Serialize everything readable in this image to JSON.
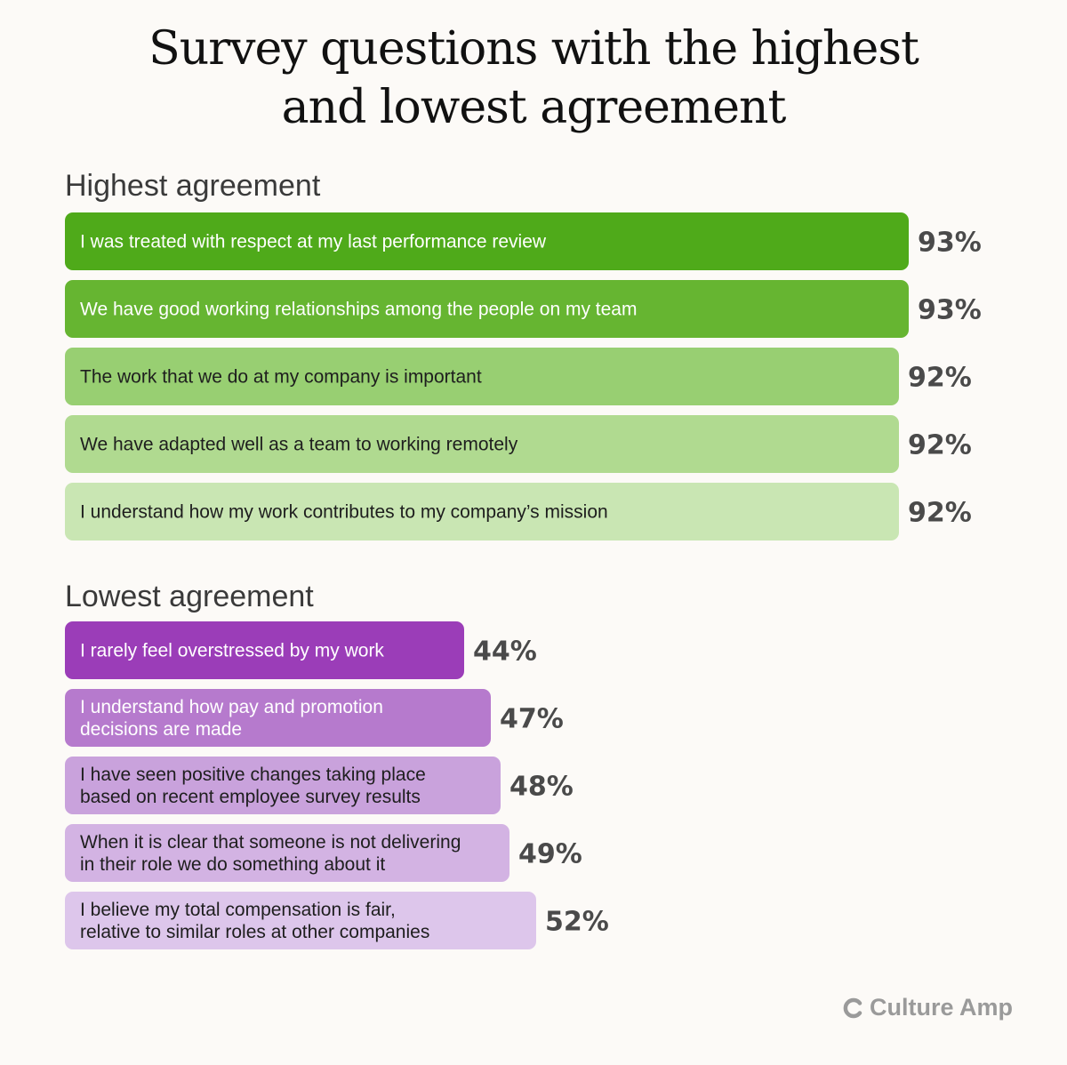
{
  "title_line1": "Survey questions with the highest",
  "title_line2": "and lowest agreement",
  "highest_heading": "Highest agreement",
  "lowest_heading": "Lowest agreement",
  "brand": "Culture Amp",
  "chart_data": [
    {
      "type": "bar",
      "orientation": "horizontal",
      "title": "Highest agreement",
      "unit": "%",
      "categories": [
        [
          "I was treated with respect at my last performance review"
        ],
        [
          "We have good working relationships among the people on my team"
        ],
        [
          "The work that we do at my company is important"
        ],
        [
          "We have adapted well as a team to working remotely"
        ],
        [
          "I understand how my work contributes to my company’s mission"
        ]
      ],
      "values": [
        93,
        93,
        92,
        92,
        92
      ],
      "value_labels": [
        "93%",
        "93%",
        "92%",
        "92%",
        "92%"
      ],
      "colors": [
        "#4faa1a",
        "#66b531",
        "#98cf72",
        "#b0da90",
        "#c9e6b3"
      ],
      "text_colors": [
        "#ffffff",
        "#ffffff",
        "#1e1e1e",
        "#1e1e1e",
        "#1e1e1e"
      ]
    },
    {
      "type": "bar",
      "orientation": "horizontal",
      "title": "Lowest agreement",
      "unit": "%",
      "categories": [
        [
          "I rarely feel overstressed by my work"
        ],
        [
          "I understand how pay and promotion",
          "decisions are made"
        ],
        [
          "I have seen positive changes taking place",
          "based on recent employee survey results"
        ],
        [
          "When it is clear that someone is not delivering",
          "in their role we do something about it"
        ],
        [
          "I believe my total compensation is fair,",
          "relative to similar roles at other companies"
        ]
      ],
      "values": [
        44,
        47,
        48,
        49,
        52
      ],
      "value_labels": [
        "44%",
        "47%",
        "48%",
        "49%",
        "52%"
      ],
      "colors": [
        "#9b3db8",
        "#b67acd",
        "#c9a2dc",
        "#d3b3e3",
        "#ddc6eb"
      ],
      "text_colors": [
        "#ffffff",
        "#ffffff",
        "#1e1e1e",
        "#1e1e1e",
        "#1e1e1e"
      ]
    }
  ]
}
